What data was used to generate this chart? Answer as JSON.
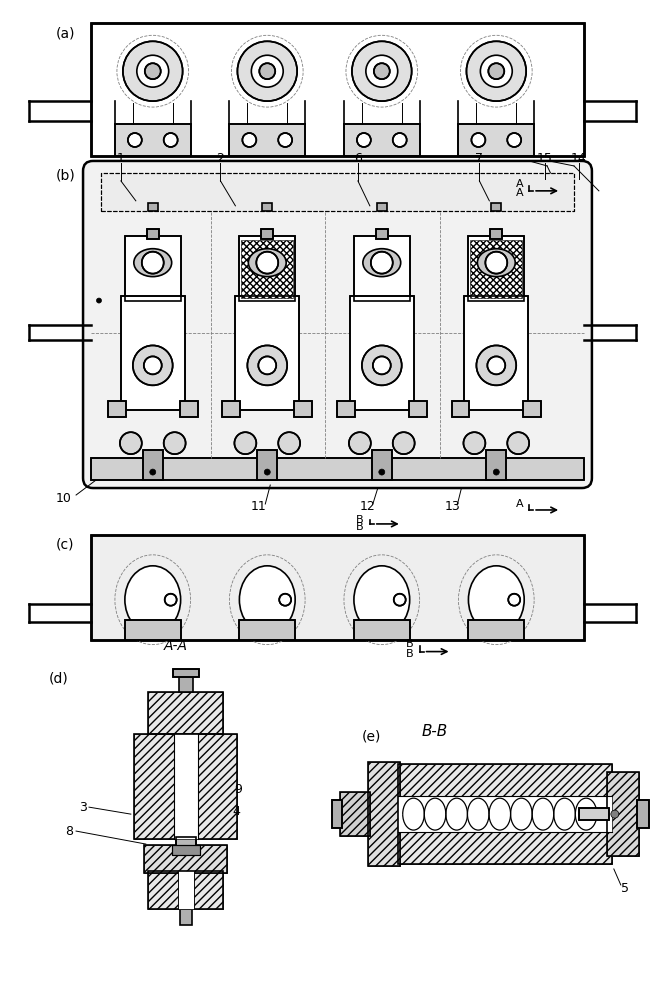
{
  "bg_color": "#ffffff",
  "line_color": "#000000",
  "labels": {
    "a": "(a)",
    "b": "(b)",
    "c": "(c)",
    "d": "(d)",
    "e": "(e)"
  },
  "part_numbers": [
    "1",
    "2",
    "3",
    "4",
    "5",
    "6",
    "7",
    "8",
    "9",
    "10",
    "11",
    "12",
    "13",
    "14",
    "15"
  ],
  "section_labels": {
    "AA": "A-A",
    "BB": "B-B"
  }
}
